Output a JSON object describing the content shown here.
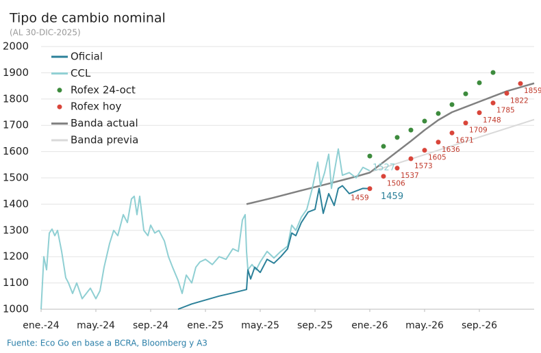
{
  "chart_data": {
    "type": "line",
    "title": "Tipo de cambio nominal",
    "subtitle": "(AL 30-DIC-2025)",
    "source": "Fuente: Eco Go en base a BCRA, Bloomberg y A3",
    "xlim": [
      0,
      36
    ],
    "ylim": [
      1000,
      2000
    ],
    "yticks": [
      1000,
      1100,
      1200,
      1300,
      1400,
      1500,
      1600,
      1700,
      1800,
      1900,
      2000
    ],
    "xticks": [
      {
        "value": 0,
        "label": "ene.-24"
      },
      {
        "value": 4,
        "label": "may.-24"
      },
      {
        "value": 8,
        "label": "sep.-24"
      },
      {
        "value": 12,
        "label": "ene.-25"
      },
      {
        "value": 16,
        "label": "may.-25"
      },
      {
        "value": 20,
        "label": "sep.-25"
      },
      {
        "value": 24,
        "label": "ene.-26"
      },
      {
        "value": 28,
        "label": "may.-26"
      },
      {
        "value": 32,
        "label": "sep.-26"
      }
    ],
    "grid": true,
    "legend": "upper left",
    "series": [
      {
        "name": "Oficial",
        "type": "line",
        "color": "#2b8099",
        "end_label": true,
        "x": [
          10,
          11,
          12,
          13,
          14,
          15,
          15.1,
          15.3,
          15.6,
          16,
          16.5,
          17,
          17.5,
          18,
          18.3,
          18.6,
          19,
          19.5,
          20,
          20.3,
          20.6,
          21,
          21.4,
          21.7,
          22,
          22.5,
          23,
          23.5,
          24
        ],
        "values": [
          1000,
          1020,
          1035,
          1050,
          1062,
          1075,
          1150,
          1115,
          1160,
          1140,
          1190,
          1175,
          1200,
          1230,
          1290,
          1280,
          1330,
          1370,
          1380,
          1460,
          1365,
          1440,
          1395,
          1460,
          1470,
          1440,
          1450,
          1460,
          1459
        ]
      },
      {
        "name": "CCL",
        "type": "line",
        "color": "#8fcfd3",
        "end_label": true,
        "x": [
          0,
          0.2,
          0.4,
          0.6,
          0.8,
          1,
          1.2,
          1.5,
          1.8,
          2,
          2.3,
          2.6,
          3,
          3.3,
          3.6,
          4,
          4.3,
          4.6,
          5,
          5.3,
          5.6,
          6,
          6.3,
          6.6,
          6.8,
          7,
          7.2,
          7.5,
          7.8,
          8,
          8.3,
          8.6,
          9,
          9.3,
          9.6,
          10,
          10.3,
          10.6,
          11,
          11.3,
          11.6,
          12,
          12.5,
          13,
          13.5,
          14,
          14.4,
          14.7,
          14.9,
          15,
          15.1,
          15.4,
          15.7,
          16,
          16.5,
          17,
          17.5,
          18,
          18.3,
          18.6,
          19,
          19.4,
          19.8,
          20.2,
          20.4,
          20.7,
          21,
          21.2,
          21.5,
          21.7,
          22,
          22.5,
          23,
          23.5,
          24
        ],
        "values": [
          1000,
          1200,
          1150,
          1290,
          1305,
          1280,
          1300,
          1220,
          1120,
          1100,
          1060,
          1100,
          1040,
          1060,
          1080,
          1040,
          1070,
          1160,
          1250,
          1300,
          1280,
          1360,
          1330,
          1420,
          1430,
          1360,
          1430,
          1300,
          1280,
          1320,
          1290,
          1300,
          1260,
          1200,
          1160,
          1110,
          1060,
          1130,
          1100,
          1160,
          1180,
          1190,
          1170,
          1200,
          1190,
          1230,
          1220,
          1340,
          1360,
          1220,
          1150,
          1170,
          1150,
          1180,
          1220,
          1195,
          1220,
          1240,
          1320,
          1300,
          1350,
          1380,
          1460,
          1560,
          1470,
          1520,
          1590,
          1460,
          1550,
          1610,
          1510,
          1520,
          1500,
          1540,
          1527
        ]
      },
      {
        "name": "Rofex 24-oct",
        "type": "scatter",
        "color": "#3d8b3d",
        "x": [
          24,
          25,
          26,
          27,
          28,
          29,
          30,
          31,
          32,
          33
        ],
        "values": [
          1583,
          1620,
          1654,
          1682,
          1716,
          1745,
          1779,
          1820,
          1862,
          1901
        ]
      },
      {
        "name": "Rofex hoy",
        "type": "scatter",
        "color": "#d9453a",
        "show_values": true,
        "x": [
          24,
          25,
          26,
          27,
          28,
          29,
          30,
          31,
          32,
          33,
          34,
          35
        ],
        "values": [
          1459,
          1506,
          1537,
          1573,
          1605,
          1636,
          1671,
          1709,
          1748,
          1785,
          1822,
          1859
        ]
      },
      {
        "name": "Banda actual",
        "type": "line",
        "color": "#808080",
        "x": [
          15,
          17,
          19,
          21,
          23,
          24,
          25,
          26,
          27,
          28,
          29,
          30,
          31,
          32,
          33,
          34,
          35,
          36
        ],
        "values": [
          1400,
          1425,
          1452,
          1478,
          1505,
          1520,
          1560,
          1600,
          1640,
          1682,
          1720,
          1750,
          1770,
          1790,
          1810,
          1830,
          1845,
          1860
        ]
      },
      {
        "name": "Banda previa",
        "type": "line",
        "color": "#d9d9d9",
        "x": [
          23,
          36
        ],
        "values": [
          1505,
          1722
        ]
      }
    ]
  }
}
